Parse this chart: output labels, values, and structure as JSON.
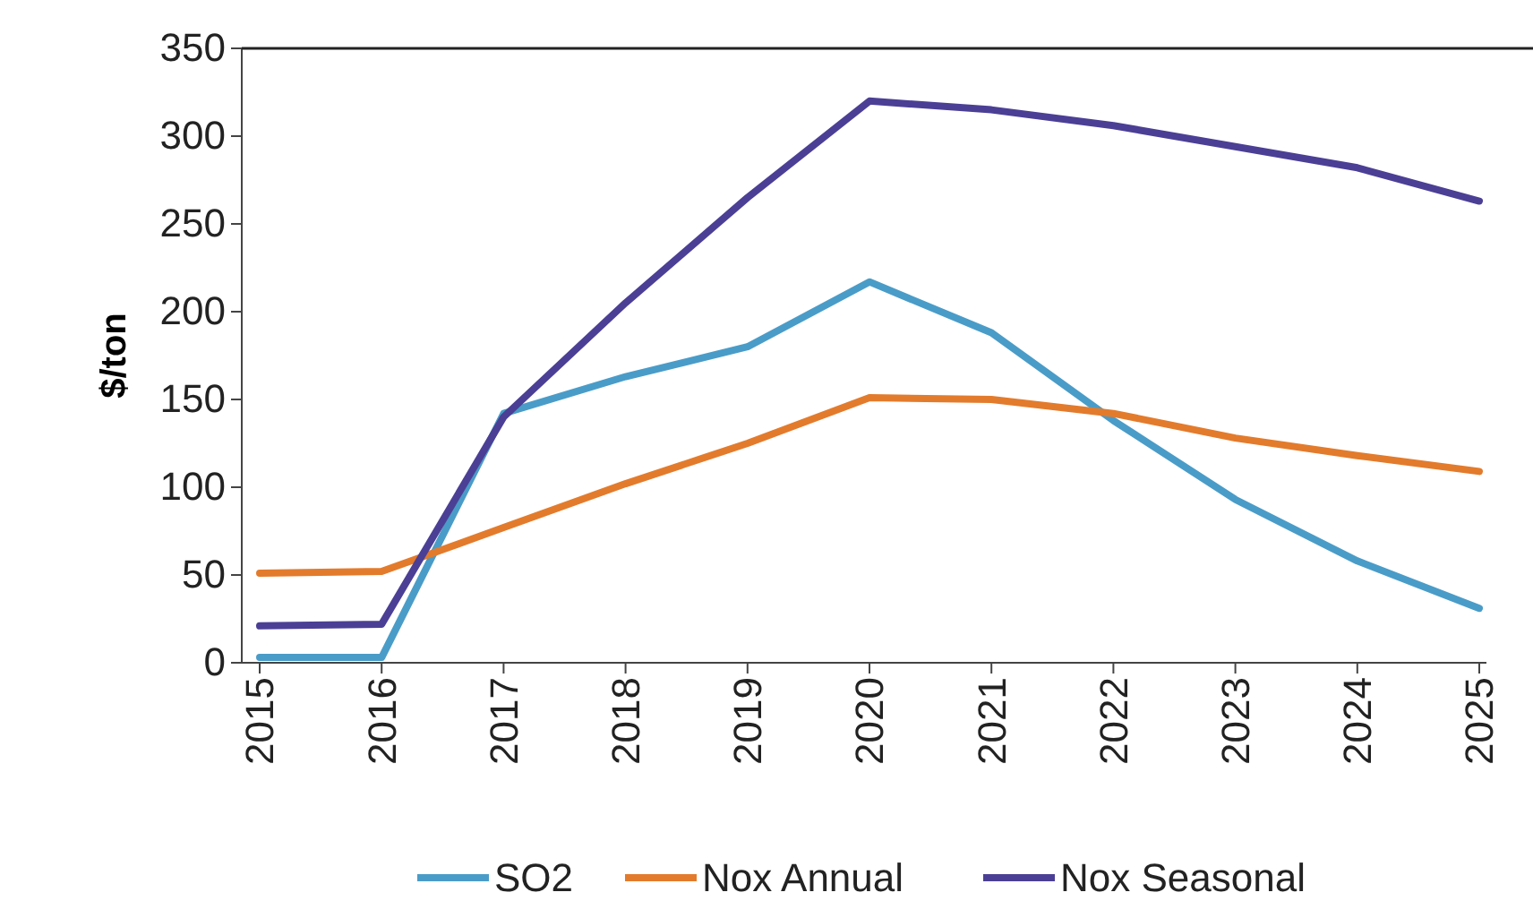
{
  "chart_data": {
    "type": "line",
    "ylabel": "$/ton",
    "categories": [
      "2015",
      "2016",
      "2017",
      "2018",
      "2019",
      "2020",
      "2021",
      "2022",
      "2023",
      "2024",
      "2025"
    ],
    "series": [
      {
        "name": "SO2",
        "color": "#4a9cc8",
        "values": [
          3,
          3,
          142,
          163,
          180,
          217,
          188,
          138,
          93,
          58,
          31
        ]
      },
      {
        "name": "Nox Annual",
        "color": "#e37b2c",
        "values": [
          51,
          52,
          77,
          102,
          125,
          151,
          150,
          142,
          128,
          118,
          109
        ]
      },
      {
        "name": "Nox Seasonal",
        "color": "#4b3f95",
        "values": [
          21,
          22,
          140,
          205,
          265,
          320,
          315,
          306,
          294,
          282,
          263
        ]
      }
    ],
    "ylim": [
      0,
      350
    ],
    "yticks": [
      0,
      50,
      100,
      150,
      200,
      250,
      300,
      350
    ],
    "grid": false,
    "legend": "bottom",
    "marker": "none",
    "line_style": "solid"
  }
}
